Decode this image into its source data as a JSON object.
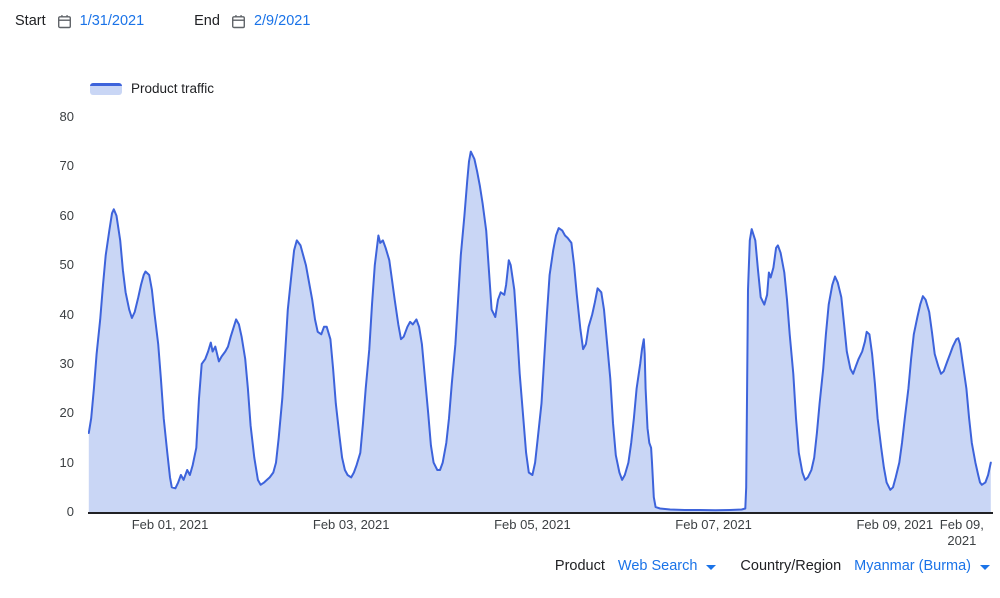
{
  "colors": {
    "link_blue": "#1a73e8",
    "line_blue": "#3d63db",
    "area_fill": "#c9d6f5",
    "axis_text": "#3c4043",
    "axis_line": "#202124",
    "icon_gray": "#5f6368"
  },
  "date_range": {
    "start_label": "Start",
    "start_value": "1/31/2021",
    "end_label": "End",
    "end_value": "2/9/2021"
  },
  "controls": {
    "product_label": "Product",
    "product_value": "Web Search",
    "country_label": "Country/Region",
    "country_value": "Myanmar (Burma)"
  },
  "chart_data": {
    "type": "area",
    "title": "Product traffic",
    "legend_position": "top-left",
    "grid": false,
    "x_unit": "days since Feb 01 2021 00:00 (negative = Jan 31)",
    "xlim": [
      -0.91,
      9.06
    ],
    "ylim": [
      0,
      80
    ],
    "y_ticks": [
      0,
      10,
      20,
      30,
      40,
      50,
      60,
      70,
      80
    ],
    "x_ticks": [
      {
        "label": "Feb 01, 2021",
        "t": 0
      },
      {
        "label": "Feb 03, 2021",
        "t": 2
      },
      {
        "label": "Feb 05, 2021",
        "t": 4
      },
      {
        "label": "Feb 07, 2021",
        "t": 6
      },
      {
        "label": "Feb 09, 2021",
        "t": 8
      },
      {
        "label": "Feb 09,\n2021",
        "t": 8.74
      }
    ],
    "series": [
      {
        "name": "Product traffic",
        "color": "#3d63db",
        "fill": "#c9d6f5",
        "points": [
          [
            -0.91,
            16
          ],
          [
            -0.87,
            19
          ],
          [
            -0.84,
            25
          ],
          [
            -0.81,
            32
          ],
          [
            -0.77,
            39
          ],
          [
            -0.74,
            46
          ],
          [
            -0.71,
            52
          ],
          [
            -0.67,
            57
          ],
          [
            -0.64,
            60.5
          ],
          [
            -0.62,
            61.3
          ],
          [
            -0.59,
            60
          ],
          [
            -0.55,
            55
          ],
          [
            -0.52,
            49
          ],
          [
            -0.49,
            44.5
          ],
          [
            -0.45,
            41
          ],
          [
            -0.42,
            39.3
          ],
          [
            -0.39,
            40.5
          ],
          [
            -0.35,
            43.5
          ],
          [
            -0.32,
            46
          ],
          [
            -0.29,
            48
          ],
          [
            -0.27,
            48.7
          ],
          [
            -0.23,
            48
          ],
          [
            -0.2,
            45
          ],
          [
            -0.17,
            40
          ],
          [
            -0.13,
            34
          ],
          [
            -0.1,
            27
          ],
          [
            -0.07,
            19
          ],
          [
            -0.03,
            12
          ],
          [
            0,
            7
          ],
          [
            0.02,
            5
          ],
          [
            0.06,
            4.8
          ],
          [
            0.09,
            6
          ],
          [
            0.12,
            7.5
          ],
          [
            0.15,
            6.5
          ],
          [
            0.19,
            8.5
          ],
          [
            0.22,
            7.5
          ],
          [
            0.25,
            9.5
          ],
          [
            0.29,
            13
          ],
          [
            0.32,
            23
          ],
          [
            0.35,
            30
          ],
          [
            0.39,
            31
          ],
          [
            0.42,
            32.5
          ],
          [
            0.45,
            34.3
          ],
          [
            0.47,
            32.5
          ],
          [
            0.5,
            33.5
          ],
          [
            0.54,
            30.5
          ],
          [
            0.57,
            31.5
          ],
          [
            0.61,
            32.5
          ],
          [
            0.64,
            33.5
          ],
          [
            0.67,
            35.5
          ],
          [
            0.73,
            39
          ],
          [
            0.76,
            38
          ],
          [
            0.79,
            35.5
          ],
          [
            0.83,
            31
          ],
          [
            0.86,
            25
          ],
          [
            0.89,
            17.5
          ],
          [
            0.93,
            11
          ],
          [
            0.97,
            6.5
          ],
          [
            1,
            5.5
          ],
          [
            1.04,
            6
          ],
          [
            1.07,
            6.5
          ],
          [
            1.1,
            7
          ],
          [
            1.14,
            8
          ],
          [
            1.17,
            10
          ],
          [
            1.2,
            15
          ],
          [
            1.24,
            23
          ],
          [
            1.27,
            32
          ],
          [
            1.3,
            41
          ],
          [
            1.34,
            48
          ],
          [
            1.37,
            53
          ],
          [
            1.4,
            55
          ],
          [
            1.44,
            54
          ],
          [
            1.47,
            52
          ],
          [
            1.5,
            50
          ],
          [
            1.53,
            47
          ],
          [
            1.57,
            43
          ],
          [
            1.6,
            39
          ],
          [
            1.63,
            36.5
          ],
          [
            1.67,
            36
          ],
          [
            1.7,
            37.5
          ],
          [
            1.73,
            37.5
          ],
          [
            1.77,
            35
          ],
          [
            1.8,
            29
          ],
          [
            1.83,
            22
          ],
          [
            1.87,
            15.5
          ],
          [
            1.9,
            11
          ],
          [
            1.93,
            8.5
          ],
          [
            1.96,
            7.5
          ],
          [
            2,
            7
          ],
          [
            2.03,
            8
          ],
          [
            2.06,
            9.5
          ],
          [
            2.1,
            12
          ],
          [
            2.13,
            18
          ],
          [
            2.16,
            25
          ],
          [
            2.2,
            33
          ],
          [
            2.23,
            42
          ],
          [
            2.26,
            50
          ],
          [
            2.3,
            56
          ],
          [
            2.32,
            54.5
          ],
          [
            2.35,
            55
          ],
          [
            2.38,
            53.5
          ],
          [
            2.42,
            51
          ],
          [
            2.45,
            47
          ],
          [
            2.48,
            43
          ],
          [
            2.52,
            38
          ],
          [
            2.55,
            35
          ],
          [
            2.58,
            35.5
          ],
          [
            2.62,
            37.5
          ],
          [
            2.65,
            38.5
          ],
          [
            2.68,
            38
          ],
          [
            2.72,
            39
          ],
          [
            2.75,
            37.5
          ],
          [
            2.78,
            34
          ],
          [
            2.81,
            28
          ],
          [
            2.85,
            20
          ],
          [
            2.88,
            13.5
          ],
          [
            2.91,
            10
          ],
          [
            2.95,
            8.5
          ],
          [
            2.98,
            8.5
          ],
          [
            3.01,
            10
          ],
          [
            3.05,
            14
          ],
          [
            3.08,
            19
          ],
          [
            3.11,
            26
          ],
          [
            3.15,
            34
          ],
          [
            3.18,
            43
          ],
          [
            3.21,
            52
          ],
          [
            3.25,
            60
          ],
          [
            3.28,
            67
          ],
          [
            3.3,
            71
          ],
          [
            3.32,
            73
          ],
          [
            3.36,
            71.5
          ],
          [
            3.39,
            69
          ],
          [
            3.42,
            66
          ],
          [
            3.45,
            62.5
          ],
          [
            3.49,
            57
          ],
          [
            3.52,
            49
          ],
          [
            3.55,
            41
          ],
          [
            3.59,
            39.5
          ],
          [
            3.62,
            43
          ],
          [
            3.65,
            44.5
          ],
          [
            3.69,
            44
          ],
          [
            3.71,
            46
          ],
          [
            3.74,
            51
          ],
          [
            3.76,
            50
          ],
          [
            3.8,
            45
          ],
          [
            3.83,
            37
          ],
          [
            3.86,
            28
          ],
          [
            3.9,
            19
          ],
          [
            3.93,
            12
          ],
          [
            3.96,
            8
          ],
          [
            4,
            7.5
          ],
          [
            4.03,
            10
          ],
          [
            4.06,
            15
          ],
          [
            4.1,
            22
          ],
          [
            4.13,
            31
          ],
          [
            4.16,
            40
          ],
          [
            4.19,
            48
          ],
          [
            4.23,
            53
          ],
          [
            4.26,
            56
          ],
          [
            4.29,
            57.5
          ],
          [
            4.33,
            57
          ],
          [
            4.36,
            56
          ],
          [
            4.39,
            55.5
          ],
          [
            4.43,
            54.5
          ],
          [
            4.46,
            50
          ],
          [
            4.49,
            44
          ],
          [
            4.53,
            37
          ],
          [
            4.56,
            33
          ],
          [
            4.59,
            34
          ],
          [
            4.62,
            37.5
          ],
          [
            4.66,
            40
          ],
          [
            4.69,
            42.5
          ],
          [
            4.72,
            45.3
          ],
          [
            4.76,
            44.5
          ],
          [
            4.79,
            41
          ],
          [
            4.82,
            35
          ],
          [
            4.86,
            27
          ],
          [
            4.89,
            18
          ],
          [
            4.92,
            11.5
          ],
          [
            4.96,
            8
          ],
          [
            4.99,
            6.5
          ],
          [
            5.02,
            7.5
          ],
          [
            5.06,
            10
          ],
          [
            5.09,
            14
          ],
          [
            5.12,
            19
          ],
          [
            5.15,
            25
          ],
          [
            5.19,
            30
          ],
          [
            5.21,
            33
          ],
          [
            5.23,
            35
          ],
          [
            5.24,
            32
          ],
          [
            5.25,
            25
          ],
          [
            5.27,
            17
          ],
          [
            5.29,
            14
          ],
          [
            5.31,
            13
          ],
          [
            5.32,
            10
          ],
          [
            5.34,
            3
          ],
          [
            5.36,
            1
          ],
          [
            5.41,
            0.7
          ],
          [
            5.52,
            0.5
          ],
          [
            5.68,
            0.4
          ],
          [
            5.85,
            0.4
          ],
          [
            6.02,
            0.35
          ],
          [
            6.18,
            0.4
          ],
          [
            6.31,
            0.5
          ],
          [
            6.35,
            0.7
          ],
          [
            6.36,
            5
          ],
          [
            6.37,
            25
          ],
          [
            6.38,
            45
          ],
          [
            6.4,
            55
          ],
          [
            6.42,
            57.3
          ],
          [
            6.46,
            55
          ],
          [
            6.49,
            49
          ],
          [
            6.52,
            43.5
          ],
          [
            6.56,
            42
          ],
          [
            6.59,
            44
          ],
          [
            6.61,
            48.5
          ],
          [
            6.63,
            47.5
          ],
          [
            6.66,
            49.5
          ],
          [
            6.69,
            53.5
          ],
          [
            6.71,
            54
          ],
          [
            6.74,
            52.5
          ],
          [
            6.78,
            48.5
          ],
          [
            6.81,
            43
          ],
          [
            6.84,
            36
          ],
          [
            6.88,
            28
          ],
          [
            6.91,
            19
          ],
          [
            6.94,
            12
          ],
          [
            6.98,
            8
          ],
          [
            7.01,
            6.5
          ],
          [
            7.04,
            7
          ],
          [
            7.08,
            8.5
          ],
          [
            7.11,
            11
          ],
          [
            7.14,
            16
          ],
          [
            7.17,
            22
          ],
          [
            7.21,
            29
          ],
          [
            7.24,
            36
          ],
          [
            7.27,
            42
          ],
          [
            7.31,
            46
          ],
          [
            7.34,
            47.7
          ],
          [
            7.37,
            46.5
          ],
          [
            7.41,
            43.5
          ],
          [
            7.44,
            38
          ],
          [
            7.47,
            32.5
          ],
          [
            7.51,
            29
          ],
          [
            7.54,
            28
          ],
          [
            7.57,
            29.5
          ],
          [
            7.6,
            31
          ],
          [
            7.64,
            32.5
          ],
          [
            7.67,
            34.5
          ],
          [
            7.69,
            36.5
          ],
          [
            7.72,
            36
          ],
          [
            7.75,
            32
          ],
          [
            7.78,
            26
          ],
          [
            7.81,
            19
          ],
          [
            7.85,
            13
          ],
          [
            7.88,
            9
          ],
          [
            7.91,
            6
          ],
          [
            7.95,
            4.5
          ],
          [
            7.98,
            5
          ],
          [
            8.01,
            7
          ],
          [
            8.05,
            10
          ],
          [
            8.08,
            14
          ],
          [
            8.11,
            19
          ],
          [
            8.15,
            25
          ],
          [
            8.18,
            31
          ],
          [
            8.21,
            36
          ],
          [
            8.25,
            39.5
          ],
          [
            8.28,
            42
          ],
          [
            8.31,
            43.7
          ],
          [
            8.34,
            43
          ],
          [
            8.38,
            40.5
          ],
          [
            8.41,
            36.5
          ],
          [
            8.44,
            32
          ],
          [
            8.48,
            29.5
          ],
          [
            8.51,
            28
          ],
          [
            8.54,
            28.5
          ],
          [
            8.58,
            30.5
          ],
          [
            8.61,
            32
          ],
          [
            8.64,
            33.5
          ],
          [
            8.68,
            35
          ],
          [
            8.7,
            35.2
          ],
          [
            8.72,
            34
          ],
          [
            8.75,
            30
          ],
          [
            8.79,
            25
          ],
          [
            8.82,
            19
          ],
          [
            8.85,
            14
          ],
          [
            8.89,
            10
          ],
          [
            8.92,
            7.5
          ],
          [
            8.94,
            6
          ],
          [
            8.96,
            5.5
          ],
          [
            9,
            6
          ],
          [
            9.03,
            7.5
          ],
          [
            9.06,
            10
          ]
        ]
      }
    ]
  }
}
